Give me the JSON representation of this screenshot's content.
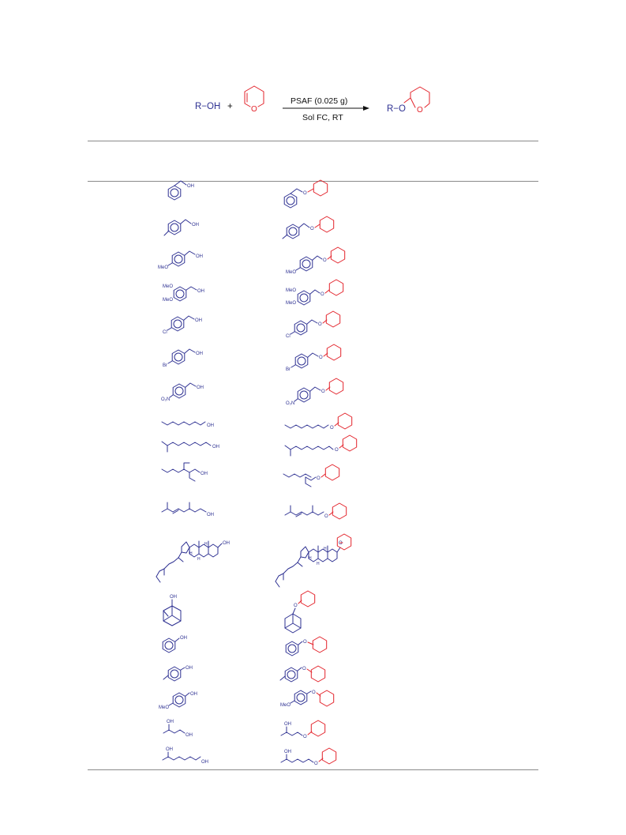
{
  "scheme": {
    "reactant_alcohol": "R−OH",
    "plus_sign": "+",
    "pyran_oxygen": "O",
    "reagent_above_arrow": "PSAF (0.025 g)",
    "conditions_below_arrow": "Sol FC, RT",
    "product_prefix": "R−O",
    "product_ring_oxygen": "O"
  },
  "labels": {
    "OH": "OH",
    "O": "O",
    "MeO": "MeO",
    "Cl": "Cl",
    "Br": "Br",
    "O2N": "O₂N",
    "H": "H"
  },
  "colors": {
    "substrate": "#2e3192",
    "thp": "#e3222a",
    "text": "#111111",
    "rule": "#8a8a8a"
  },
  "rows": [
    {
      "substrate": "benzyl alcohol",
      "product": "benzyl THP ether"
    },
    {
      "substrate": "4-methylbenzyl alcohol",
      "product": "4-methylbenzyl THP ether"
    },
    {
      "substrate": "4-methoxybenzyl alcohol",
      "product": "4-methoxybenzyl THP ether"
    },
    {
      "substrate": "3,4-dimethoxybenzyl alcohol",
      "product": "3,4-dimethoxybenzyl THP ether"
    },
    {
      "substrate": "4-chlorobenzyl alcohol",
      "product": "4-chlorobenzyl THP ether"
    },
    {
      "substrate": "4-bromobenzyl alcohol",
      "product": "4-bromobenzyl THP ether"
    },
    {
      "substrate": "4-nitrobenzyl alcohol",
      "product": "4-nitrobenzyl THP ether"
    },
    {
      "substrate": "1-octanol",
      "product": "octyl THP ether"
    },
    {
      "substrate": "isodecanol",
      "product": "isodecyl THP ether"
    },
    {
      "substrate": "2-ethylhexanol",
      "product": "2-ethylhexyl THP ether"
    },
    {
      "substrate": "citronellol",
      "product": "citronellyl THP ether"
    },
    {
      "substrate": "cholesterol",
      "product": "cholesteryl THP ether"
    },
    {
      "substrate": "1-adamantanol",
      "product": "adamantyl THP ether"
    },
    {
      "substrate": "phenol",
      "product": "phenyl THP ether"
    },
    {
      "substrate": "4-methylphenol",
      "product": "4-methylphenyl THP ether"
    },
    {
      "substrate": "4-methoxyphenol",
      "product": "4-methoxyphenyl THP ether"
    },
    {
      "substrate": "1,3-butanediol",
      "product": "mono-THP 1,3-butanediol"
    },
    {
      "substrate": "1,5-hexanediol",
      "product": "mono-THP 1,5-hexanediol"
    }
  ]
}
